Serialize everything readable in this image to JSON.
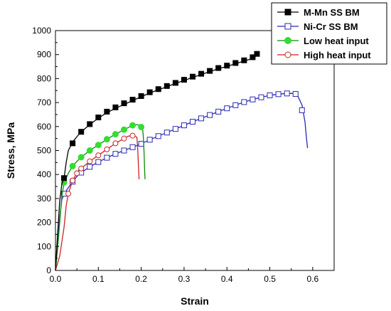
{
  "chart_data": {
    "type": "line",
    "xlabel": "Strain",
    "ylabel": "Stress, MPa",
    "xlim": [
      0.0,
      0.65
    ],
    "ylim": [
      0,
      1000
    ],
    "xticks": [
      "0.0",
      "0.1",
      "0.2",
      "0.3",
      "0.4",
      "0.5",
      "0.6"
    ],
    "yticks": [
      "0",
      "100",
      "200",
      "300",
      "400",
      "500",
      "600",
      "700",
      "800",
      "900",
      "1000"
    ],
    "legend_position": "top-right",
    "series": [
      {
        "name": "M-Mn SS BM",
        "color": "#000000",
        "marker": "filled-square",
        "x": [
          0.0,
          0.005,
          0.01,
          0.015,
          0.02,
          0.025,
          0.03,
          0.04,
          0.05,
          0.06,
          0.08,
          0.1,
          0.12,
          0.14,
          0.16,
          0.18,
          0.2,
          0.22,
          0.24,
          0.26,
          0.28,
          0.3,
          0.32,
          0.34,
          0.36,
          0.38,
          0.4,
          0.42,
          0.44,
          0.46,
          0.47,
          0.475
        ],
        "y": [
          0,
          150,
          290,
          360,
          385,
          450,
          500,
          535,
          558,
          578,
          608,
          635,
          658,
          676,
          692,
          708,
          724,
          740,
          753,
          766,
          780,
          792,
          805,
          817,
          829,
          841,
          851,
          862,
          873,
          884,
          897,
          903
        ],
        "markers_x": [
          0.02,
          0.04,
          0.06,
          0.08,
          0.1,
          0.12,
          0.14,
          0.16,
          0.18,
          0.2,
          0.22,
          0.24,
          0.26,
          0.28,
          0.3,
          0.32,
          0.34,
          0.36,
          0.38,
          0.4,
          0.42,
          0.44,
          0.46,
          0.47
        ],
        "markers_y": [
          385,
          530,
          578,
          610,
          638,
          662,
          680,
          697,
          712,
          727,
          743,
          756,
          769,
          782,
          795,
          808,
          820,
          832,
          844,
          854,
          865,
          876,
          889,
          903
        ]
      },
      {
        "name": "Ni-Cr SS BM",
        "color": "#2a2ab8",
        "marker": "open-square",
        "x": [
          0.0,
          0.005,
          0.01,
          0.015,
          0.02,
          0.03,
          0.04,
          0.05,
          0.06,
          0.08,
          0.1,
          0.12,
          0.14,
          0.16,
          0.18,
          0.2,
          0.22,
          0.24,
          0.26,
          0.28,
          0.3,
          0.32,
          0.34,
          0.36,
          0.38,
          0.4,
          0.42,
          0.44,
          0.46,
          0.48,
          0.5,
          0.52,
          0.54,
          0.555,
          0.565,
          0.575,
          0.582,
          0.585,
          0.588
        ],
        "y": [
          0,
          110,
          220,
          295,
          320,
          345,
          370,
          392,
          408,
          432,
          452,
          470,
          486,
          500,
          514,
          528,
          545,
          560,
          575,
          590,
          605,
          620,
          634,
          648,
          662,
          676,
          689,
          702,
          713,
          722,
          730,
          735,
          738,
          738,
          728,
          690,
          620,
          560,
          510
        ],
        "markers_x": [
          0.02,
          0.04,
          0.06,
          0.08,
          0.1,
          0.12,
          0.14,
          0.16,
          0.18,
          0.2,
          0.22,
          0.24,
          0.26,
          0.28,
          0.3,
          0.32,
          0.34,
          0.36,
          0.38,
          0.4,
          0.42,
          0.44,
          0.46,
          0.48,
          0.5,
          0.52,
          0.54,
          0.56,
          0.575
        ],
        "markers_y": [
          320,
          370,
          408,
          432,
          452,
          470,
          486,
          500,
          514,
          528,
          545,
          560,
          575,
          590,
          605,
          620,
          634,
          648,
          662,
          676,
          689,
          702,
          713,
          722,
          730,
          735,
          738,
          736,
          668
        ]
      },
      {
        "name": "Low heat input",
        "color": "#0b8a0b",
        "marker": "filled-circle",
        "x": [
          0.0,
          0.005,
          0.01,
          0.015,
          0.02,
          0.03,
          0.04,
          0.05,
          0.06,
          0.08,
          0.1,
          0.12,
          0.14,
          0.16,
          0.18,
          0.19,
          0.195,
          0.2,
          0.203,
          0.205,
          0.207,
          0.208,
          0.209
        ],
        "y": [
          0,
          90,
          200,
          310,
          365,
          405,
          435,
          455,
          472,
          500,
          523,
          547,
          568,
          587,
          605,
          608,
          606,
          600,
          595,
          560,
          480,
          420,
          380
        ],
        "markers_x": [
          0.02,
          0.04,
          0.06,
          0.08,
          0.1,
          0.12,
          0.14,
          0.16,
          0.18,
          0.2
        ],
        "markers_y": [
          367,
          435,
          472,
          500,
          523,
          547,
          568,
          587,
          605,
          598
        ]
      },
      {
        "name": "High heat input",
        "color": "#cc2222",
        "marker": "open-circle",
        "x": [
          0.0,
          0.01,
          0.02,
          0.025,
          0.03,
          0.04,
          0.05,
          0.06,
          0.08,
          0.1,
          0.12,
          0.14,
          0.16,
          0.17,
          0.18,
          0.185,
          0.19,
          0.192,
          0.194,
          0.195
        ],
        "y": [
          0,
          60,
          180,
          270,
          320,
          375,
          405,
          425,
          455,
          480,
          505,
          530,
          550,
          560,
          562,
          561,
          555,
          500,
          420,
          380
        ],
        "markers_x": [
          0.03,
          0.04,
          0.05,
          0.06,
          0.08,
          0.1,
          0.12,
          0.14,
          0.16,
          0.18
        ],
        "markers_y": [
          320,
          375,
          405,
          425,
          455,
          480,
          505,
          530,
          550,
          562
        ]
      }
    ]
  }
}
